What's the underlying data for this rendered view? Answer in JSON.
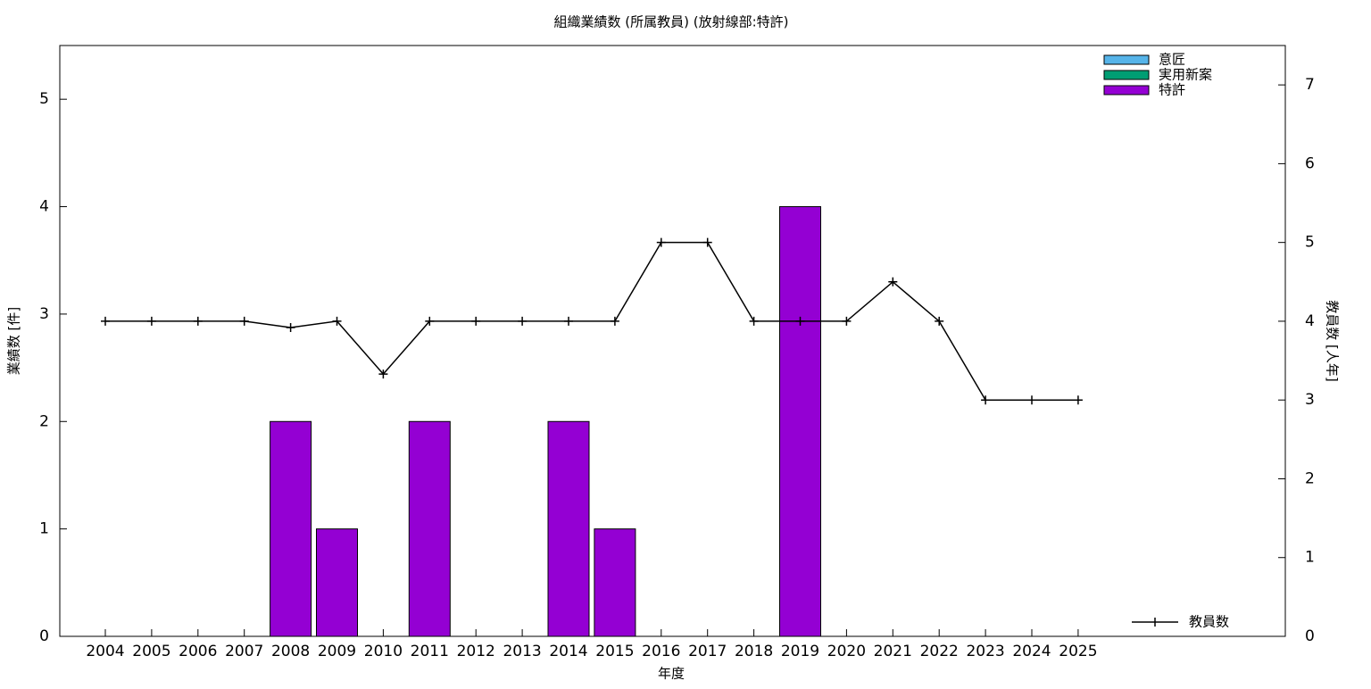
{
  "chart_data": {
    "type": "bar",
    "title": "組織業績数 (所属教員) (放射線部:特許)",
    "x_label": "年度",
    "y_label": "業績数 [件]",
    "y2_label": "教員数 [人年]",
    "categories": [
      "2004",
      "2005",
      "2006",
      "2007",
      "2008",
      "2009",
      "2010",
      "2011",
      "2012",
      "2013",
      "2014",
      "2015",
      "2016",
      "2017",
      "2018",
      "2019",
      "2020",
      "2021",
      "2022",
      "2023",
      "2024",
      "2025"
    ],
    "series": [
      {
        "name": "意匠",
        "color": "#56b4e9",
        "values": [
          0,
          0,
          0,
          0,
          0,
          0,
          0,
          0,
          0,
          0,
          0,
          0,
          0,
          0,
          0,
          0,
          0,
          0,
          0,
          0,
          0,
          0
        ]
      },
      {
        "name": "実用新案",
        "color": "#009e73",
        "values": [
          0,
          0,
          0,
          0,
          0,
          0,
          0,
          0,
          0,
          0,
          0,
          0,
          0,
          0,
          0,
          0,
          0,
          0,
          0,
          0,
          0,
          0
        ]
      },
      {
        "name": "特許",
        "color": "#9400d3",
        "values": [
          0,
          0,
          0,
          0,
          2,
          1,
          0,
          2,
          0,
          0,
          2,
          1,
          0,
          0,
          0,
          4,
          0,
          0,
          0,
          0,
          0,
          0
        ]
      },
      {
        "name": "教員数",
        "color": "#000000",
        "axis": "y2",
        "type": "line",
        "values": [
          4,
          4,
          4,
          4,
          3.92,
          4,
          3.33,
          4,
          4,
          4,
          4,
          4,
          5,
          5,
          4,
          4,
          4,
          4.5,
          4,
          3,
          3,
          3
        ]
      }
    ],
    "ylim": [
      0,
      5.5
    ],
    "yticks": [
      0,
      1,
      2,
      3,
      4,
      5
    ],
    "y2lim": [
      0,
      7.5
    ],
    "y2ticks": [
      0,
      1,
      2,
      3,
      4,
      5,
      6,
      7
    ],
    "stacked": true,
    "legend": "top-right",
    "line_legend": "bottom-right",
    "grid": false
  }
}
